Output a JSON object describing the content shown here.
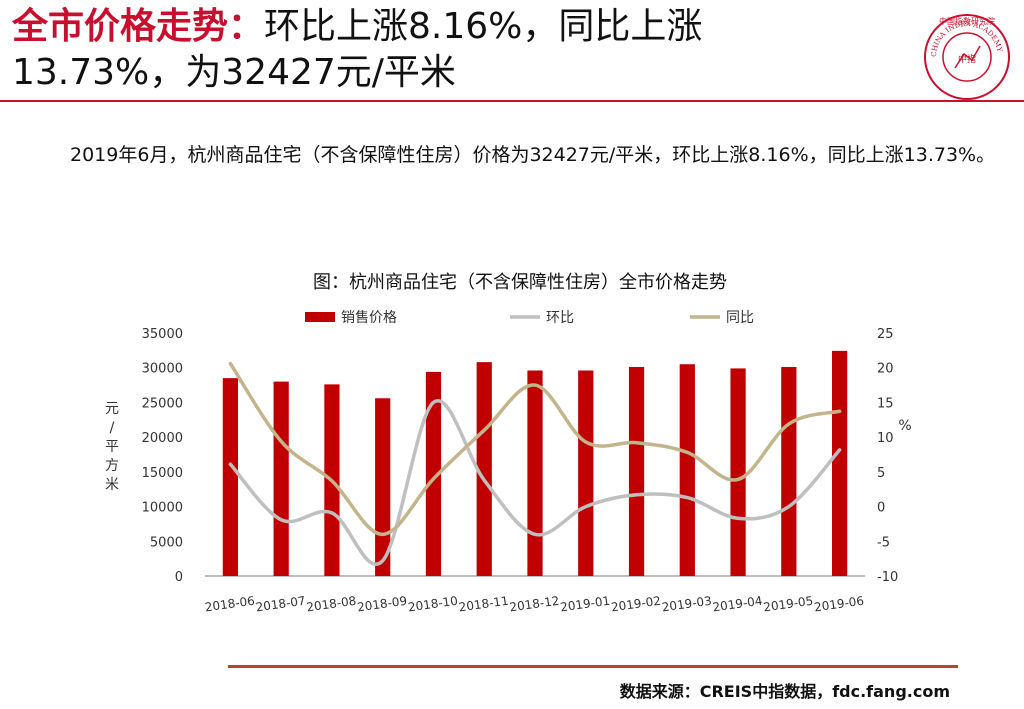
{
  "header": {
    "title_highlight": "全市价格走势：",
    "title_rest": "环比上涨8.16%，同比上涨13.73%，为32427元/平米",
    "logo_text": "中国指数研究院",
    "logo_subtext": "CHINA INDEX ACADEMY",
    "logo_center": "中指"
  },
  "body": {
    "paragraph": "2019年6月，杭州商品住宅（不含保障性住房）价格为32427元/平米，环比上涨8.16%，同比上涨13.73%。"
  },
  "footer": {
    "source": "数据来源：CREIS中指数据，fdc.fang.com"
  },
  "chart_data": {
    "type": "bar",
    "title": "图：杭州商品住宅（不含保障性住房）全市价格走势",
    "categories": [
      "2018-06",
      "2018-07",
      "2018-08",
      "2018-09",
      "2018-10",
      "2018-11",
      "2018-12",
      "2019-01",
      "2019-02",
      "2019-03",
      "2019-04",
      "2019-05",
      "2019-06"
    ],
    "series": [
      {
        "name": "销售价格",
        "kind": "bar",
        "axis": "left",
        "color": "#c00000",
        "values": [
          28500,
          28000,
          27600,
          25600,
          29400,
          30800,
          29600,
          29600,
          30100,
          30500,
          29900,
          30100,
          32427
        ]
      },
      {
        "name": "环比",
        "kind": "line",
        "axis": "right",
        "color": "#bfbfbf",
        "values": [
          6.1,
          -1.9,
          -0.9,
          -7.8,
          15,
          3.8,
          -4,
          0,
          1.7,
          1.3,
          -1.7,
          0,
          8.16
        ]
      },
      {
        "name": "同比",
        "kind": "line",
        "axis": "right",
        "color": "#c4b48c",
        "values": [
          20.6,
          9.4,
          3.7,
          -4,
          4,
          11,
          17.5,
          9.3,
          9.2,
          7.8,
          3.9,
          11.9,
          13.73
        ]
      }
    ],
    "ylabel_left": "元/平方米",
    "ylabel_right": "%",
    "ylim_left": [
      0,
      35000
    ],
    "yticks_left": [
      "0",
      "5000",
      "10000",
      "15000",
      "20000",
      "25000",
      "30000",
      "35000"
    ],
    "ylim_right": [
      -10,
      25
    ],
    "yticks_right": [
      "-10",
      "-5",
      "0",
      "5",
      "10",
      "15",
      "20",
      "25"
    ],
    "legend_position": "top",
    "grid": false
  }
}
